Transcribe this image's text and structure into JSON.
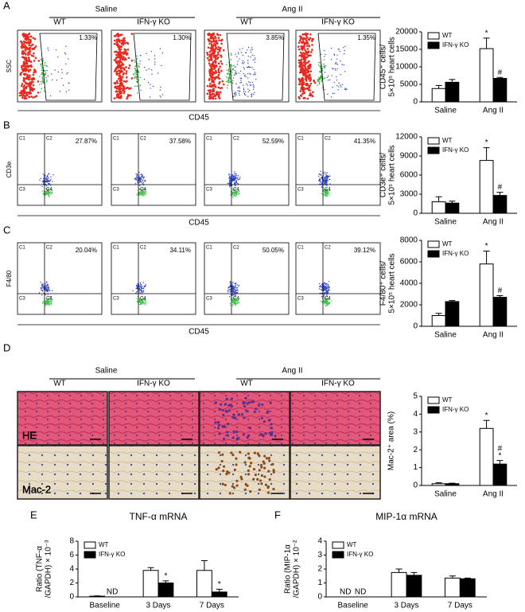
{
  "panel_letters": [
    "A",
    "B",
    "C",
    "D",
    "E",
    "F"
  ],
  "flow": {
    "group_headers": [
      "Saline",
      "Ang II"
    ],
    "column_headers": [
      "WT",
      "IFN-γ KO",
      "WT",
      "IFN-γ KO"
    ],
    "x_label": "CD45",
    "quadrants": [
      "C1",
      "C2",
      "C3",
      "C4"
    ],
    "rows": [
      {
        "y_label": "SSC",
        "percentages": [
          "1.33%",
          "1.30%",
          "3.85%",
          "1.35%"
        ]
      },
      {
        "y_label": "CD3e",
        "percentages": [
          "27.87%",
          "37.58%",
          "52.59%",
          "41.35%"
        ]
      },
      {
        "y_label": "F4/80",
        "percentages": [
          "20.04%",
          "34.11%",
          "50.05%",
          "39.12%"
        ]
      }
    ]
  },
  "histology": {
    "group_headers": [
      "Saline",
      "Ang II"
    ],
    "column_headers": [
      "WT",
      "IFN-γ KO",
      "WT",
      "IFN-γ KO"
    ],
    "row_labels": [
      "HE",
      "Mac-2"
    ]
  },
  "chart_data": [
    {
      "type": "bar",
      "ylabel": [
        "CD45⁺ cells/",
        "5×10⁵ heart cells"
      ],
      "categories": [
        "Saline",
        "Ang II"
      ],
      "ylim": [
        0,
        20000
      ],
      "yticks": [
        0,
        5000,
        10000,
        15000,
        20000
      ],
      "series": [
        {
          "name": "WT",
          "color": "#ffffff",
          "values": [
            3800,
            15200
          ],
          "errors": [
            900,
            3000
          ],
          "marks": [
            null,
            [
              "*"
            ]
          ]
        },
        {
          "name": "IFN-γ KO",
          "color": "#000000",
          "values": [
            5600,
            6700
          ],
          "errors": [
            800,
            300
          ],
          "marks": [
            null,
            [
              "#"
            ]
          ]
        }
      ]
    },
    {
      "type": "bar",
      "ylabel": [
        "CD3e⁺ cells/",
        "5×10⁵ heart cells"
      ],
      "categories": [
        "Saline",
        "Ang II"
      ],
      "ylim": [
        0,
        12000
      ],
      "yticks": [
        0,
        3000,
        6000,
        9000,
        12000
      ],
      "series": [
        {
          "name": "WT",
          "color": "#ffffff",
          "values": [
            1800,
            8300
          ],
          "errors": [
            800,
            2000
          ],
          "marks": [
            null,
            [
              "*"
            ]
          ]
        },
        {
          "name": "IFN-γ KO",
          "color": "#000000",
          "values": [
            1600,
            2800
          ],
          "errors": [
            300,
            500
          ],
          "marks": [
            null,
            [
              "#"
            ]
          ]
        }
      ]
    },
    {
      "type": "bar",
      "ylabel": [
        "F4/80⁺ cells/",
        "5×10⁵ heart cells"
      ],
      "categories": [
        "Saline",
        "Ang II"
      ],
      "ylim": [
        0,
        8000
      ],
      "yticks": [
        0,
        2000,
        4000,
        6000,
        8000
      ],
      "series": [
        {
          "name": "WT",
          "color": "#ffffff",
          "values": [
            1000,
            5800
          ],
          "errors": [
            200,
            1200
          ],
          "marks": [
            null,
            [
              "*"
            ]
          ]
        },
        {
          "name": "IFN-γ KO",
          "color": "#000000",
          "values": [
            2300,
            2700
          ],
          "errors": [
            100,
            150
          ],
          "marks": [
            null,
            [
              "#"
            ]
          ]
        }
      ]
    },
    {
      "type": "bar",
      "ylabel": [
        "Mac-2⁺ area (%)"
      ],
      "categories": [
        "Saline",
        "Ang II"
      ],
      "ylim": [
        0,
        5
      ],
      "yticks": [
        0,
        1,
        2,
        3,
        4,
        5
      ],
      "series": [
        {
          "name": "WT",
          "color": "#ffffff",
          "values": [
            0.1,
            3.2
          ],
          "errors": [
            0.05,
            0.45
          ],
          "marks": [
            null,
            [
              "*"
            ]
          ]
        },
        {
          "name": "IFN-γ KO",
          "color": "#000000",
          "values": [
            0.1,
            1.2
          ],
          "errors": [
            0.03,
            0.2
          ],
          "marks": [
            null,
            [
              "*",
              "#"
            ]
          ]
        }
      ]
    },
    {
      "type": "bar",
      "title": "TNF-α mRNA",
      "ylabel": [
        "Ratio (TNF-α",
        "/GAPDH) × 10⁻³"
      ],
      "categories": [
        "Baseline",
        "3 Days",
        "7 Days"
      ],
      "ylim": [
        0,
        8
      ],
      "yticks": [
        0,
        2,
        4,
        6,
        8
      ],
      "series": [
        {
          "name": "WT",
          "color": "#ffffff",
          "values": [
            0.1,
            3.8,
            3.8
          ],
          "errors": [
            0.05,
            0.4,
            1.4
          ],
          "marks": [
            null,
            null,
            null
          ]
        },
        {
          "name": "IFN-γ KO",
          "color": "#000000",
          "values": [
            null,
            2.0,
            0.7
          ],
          "value_labels": [
            "ND",
            null,
            null
          ],
          "errors": [
            null,
            0.3,
            0.4
          ],
          "marks": [
            null,
            [
              "*"
            ],
            [
              "*"
            ]
          ]
        }
      ]
    },
    {
      "type": "bar",
      "title": "MIP-1α mRNA",
      "ylabel": [
        "Ratio (MIP-1α",
        "/GAPDH) × 10⁻²"
      ],
      "categories": [
        "Baseline",
        "3 Days",
        "7 Days"
      ],
      "ylim": [
        0,
        4
      ],
      "yticks": [
        0,
        1,
        2,
        3,
        4
      ],
      "series": [
        {
          "name": "WT",
          "color": "#ffffff",
          "values": [
            null,
            1.75,
            1.35
          ],
          "value_labels": [
            "ND",
            null,
            null
          ],
          "errors": [
            null,
            0.25,
            0.15
          ],
          "marks": [
            null,
            null,
            null
          ]
        },
        {
          "name": "IFN-γ KO",
          "color": "#000000",
          "values": [
            null,
            1.55,
            1.3
          ],
          "value_labels": [
            "ND",
            null,
            null
          ],
          "errors": [
            null,
            0.2,
            0.05
          ],
          "marks": [
            null,
            null,
            null
          ]
        }
      ]
    }
  ]
}
